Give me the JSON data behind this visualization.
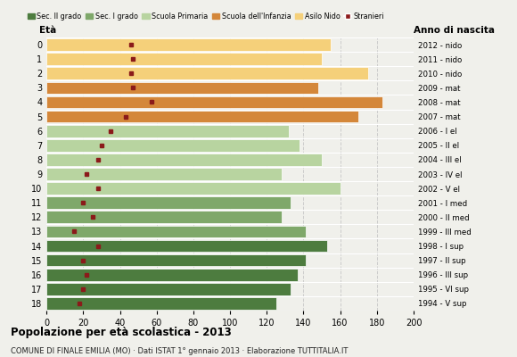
{
  "ages": [
    18,
    17,
    16,
    15,
    14,
    13,
    12,
    11,
    10,
    9,
    8,
    7,
    6,
    5,
    4,
    3,
    2,
    1,
    0
  ],
  "bar_values": [
    125,
    133,
    137,
    141,
    153,
    141,
    128,
    133,
    160,
    128,
    150,
    138,
    132,
    170,
    183,
    148,
    175,
    150,
    155
  ],
  "stranieri": [
    18,
    20,
    22,
    20,
    28,
    15,
    25,
    20,
    28,
    22,
    28,
    30,
    35,
    43,
    57,
    47,
    46,
    47,
    46
  ],
  "anno_nascita": [
    "1994 - V sup",
    "1995 - VI sup",
    "1996 - III sup",
    "1997 - II sup",
    "1998 - I sup",
    "1999 - III med",
    "2000 - II med",
    "2001 - I med",
    "2002 - V el",
    "2003 - IV el",
    "2004 - III el",
    "2005 - II el",
    "2006 - I el",
    "2007 - mat",
    "2008 - mat",
    "2009 - mat",
    "2010 - nido",
    "2011 - nido",
    "2012 - nido"
  ],
  "colors": {
    "sec2": "#4d7c3f",
    "sec1": "#7fa86a",
    "primaria": "#b8d4a0",
    "infanzia": "#d4873a",
    "nido": "#f5d07a",
    "stranieri": "#8b1a1a"
  },
  "legend_labels": [
    "Sec. II grado",
    "Sec. I grado",
    "Scuola Primaria",
    "Scuola dell'Infanzia",
    "Asilo Nido",
    "Stranieri"
  ],
  "title": "Popolazione per età scolastica - 2013",
  "subtitle": "COMUNE DI FINALE EMILIA (MO) · Dati ISTAT 1° gennaio 2013 · Elaborazione TUTTITALIA.IT",
  "eta_label": "Età",
  "anno_label": "Anno di nascita",
  "xlim": [
    0,
    200
  ],
  "xticks": [
    0,
    20,
    40,
    60,
    80,
    100,
    120,
    140,
    160,
    180,
    200
  ],
  "background_color": "#f0f0eb"
}
